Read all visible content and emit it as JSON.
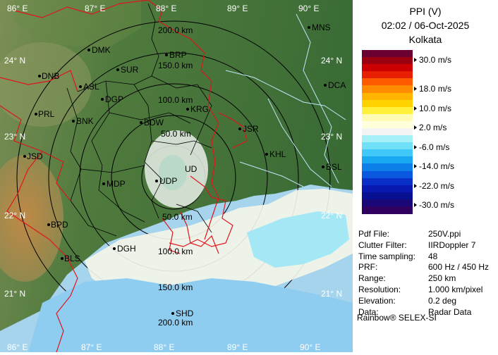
{
  "product": {
    "title": "PPI (V)",
    "time": "02:02 / 06-Oct-2025",
    "station": "Kolkata"
  },
  "legend": {
    "colors": [
      "#6a0032",
      "#9b0010",
      "#cc0000",
      "#e81e00",
      "#ff5a00",
      "#ff8c00",
      "#ffb400",
      "#ffd200",
      "#fff03c",
      "#fffab4",
      "#ffffdc",
      "#f4f4f4",
      "#a6f0f8",
      "#70e0f8",
      "#40c8f8",
      "#18a8f0",
      "#0c80e8",
      "#0a58e0",
      "#0830c8",
      "#0818b0",
      "#061090",
      "#1a0878",
      "#300060"
    ],
    "labels": [
      "30.0 m/s",
      "18.0 m/s",
      "10.0 m/s",
      "2.0 m/s",
      "-6.0 m/s",
      "-14.0 m/s",
      "-22.0 m/s",
      "-30.0 m/s"
    ]
  },
  "info": [
    {
      "label": "Pdf File:",
      "value": "250V.ppi"
    },
    {
      "label": "Clutter Filter:",
      "value": "IIRDoppler 7"
    },
    {
      "label": "Time sampling:",
      "value": "48"
    },
    {
      "label": "PRF:",
      "value": "600 Hz / 450 Hz"
    },
    {
      "label": "Range:",
      "value": "250 km"
    },
    {
      "label": "Resolution:",
      "value": "1.000 km/pixel"
    },
    {
      "label": "Elevation:",
      "value": "0.2 deg"
    },
    {
      "label": "Data:",
      "value": "Radar Data"
    }
  ],
  "credit": "Rainbow® SELEX-SI",
  "map": {
    "lon_top": [
      "86° E",
      "87° E",
      "88° E",
      "89° E",
      "90° E"
    ],
    "lon_bottom": [
      "86° E",
      "87° E",
      "88° E",
      "89° E",
      "90° E"
    ],
    "lat_left": [
      "24° N",
      "23° N",
      "22° N",
      "21° N"
    ],
    "lat_right": [
      "24° N",
      "23° N",
      "22° N",
      "21° N"
    ],
    "ring_labels_top": [
      "200.0 km",
      "150.0 km",
      "100.0 km",
      "50.0 km"
    ],
    "ring_labels_bottom": [
      "50.0 km",
      "100.0 km",
      "150.0 km",
      "200.0 km"
    ],
    "center_label": "UD",
    "cities": [
      "MNS",
      "DMK",
      "BRP",
      "DNB",
      "SUR",
      "ASL",
      "DGP",
      "DCA",
      "PRL",
      "KRG",
      "BNK",
      "BDW",
      "JSR",
      "KHL",
      "JSD",
      "BSL",
      "MDP",
      "UDP",
      "BPD",
      "DGH",
      "BLS",
      "SHD"
    ]
  }
}
